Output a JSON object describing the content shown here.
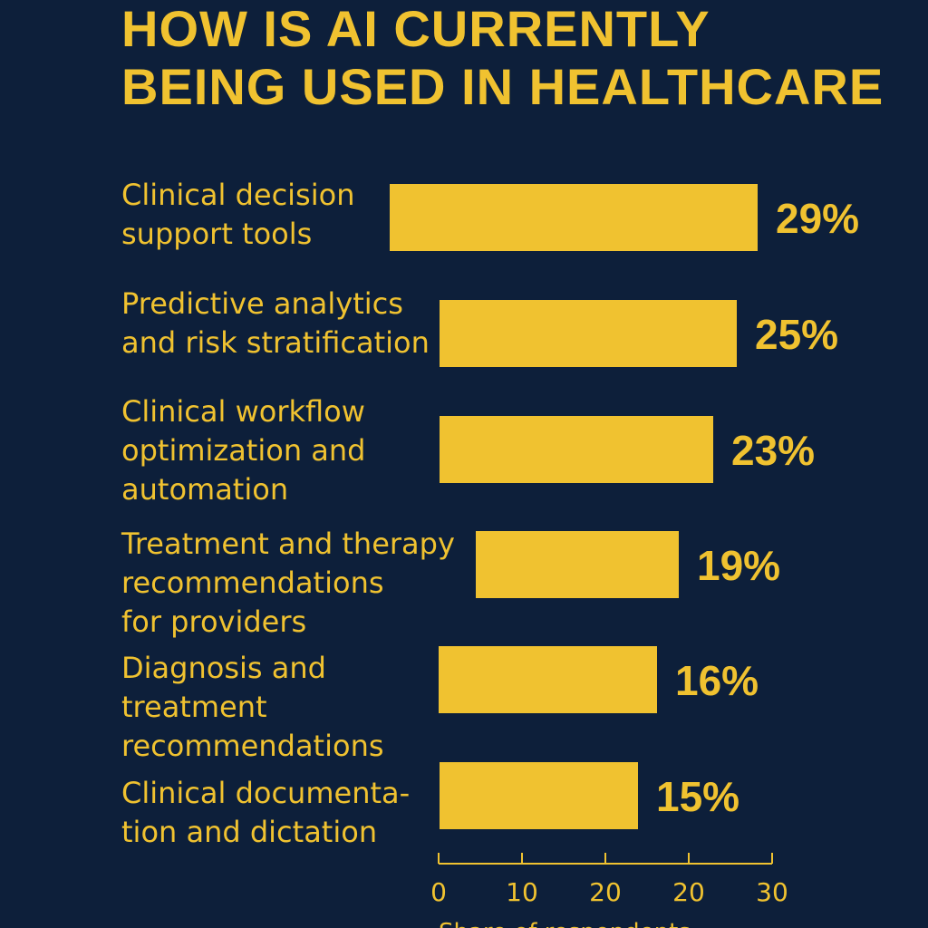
{
  "title_lines": [
    "HOW IS AI CURRENTLY",
    "BEING USED IN HEALTHCARE"
  ],
  "colors": {
    "background": "#0d1f3a",
    "bar": "#f0c230",
    "text": "#f0c230"
  },
  "chart_data": {
    "type": "bar",
    "orientation": "horizontal",
    "title": "HOW IS AI CURRENTLY BEING USED IN HEALTHCARE",
    "categories": [
      [
        "Clinical decision",
        "support tools"
      ],
      [
        "Predictive analytics",
        "and risk stratification"
      ],
      [
        "Clinical workflow",
        "optimization and",
        "automation"
      ],
      [
        "Treatment and therapy",
        "recommendations",
        "for providers"
      ],
      [
        "Diagnosis and",
        "treatment",
        "recommendations"
      ],
      [
        "Clinical documenta-",
        "tion and dictation"
      ]
    ],
    "values": [
      29,
      25,
      23,
      19,
      16,
      15
    ],
    "value_labels": [
      "29%",
      "25%",
      "23%",
      "19%",
      "16%",
      "15%"
    ],
    "x_ticks": [
      "0",
      "10",
      "20",
      "20",
      "30"
    ],
    "xlabel": "Share of respondents",
    "xlim": [
      0,
      30
    ],
    "grid": false,
    "legend": "none"
  }
}
